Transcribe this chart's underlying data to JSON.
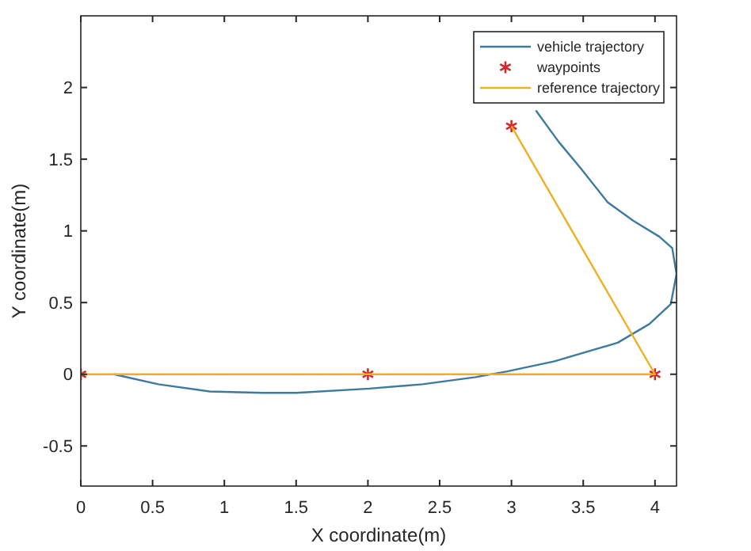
{
  "chart_data": {
    "type": "line",
    "xlabel": "X coordinate(m)",
    "ylabel": "Y coordinate(m)",
    "xlim": [
      0,
      4.15
    ],
    "ylim": [
      -0.78,
      2.5
    ],
    "xticks": [
      0,
      0.5,
      1,
      1.5,
      2,
      2.5,
      3,
      3.5,
      4
    ],
    "yticks": [
      -0.5,
      0,
      0.5,
      1,
      1.5,
      2
    ],
    "grid": false,
    "legend": "top right",
    "series": [
      {
        "name": "vehicle trajectory",
        "color": "#3d7a9e",
        "marker": "none",
        "x": [
          0.23,
          0.54,
          0.9,
          1.27,
          1.5,
          2.01,
          2.38,
          2.75,
          2.97,
          3.3,
          3.74,
          3.96,
          4.11,
          4.15,
          4.12,
          4.03,
          3.85,
          3.67,
          3.48,
          3.33,
          3.17
        ],
        "values": [
          0,
          -0.07,
          -0.12,
          -0.13,
          -0.13,
          -0.1,
          -0.07,
          -0.02,
          0.02,
          0.09,
          0.22,
          0.35,
          0.49,
          0.7,
          0.88,
          0.96,
          1.07,
          1.2,
          1.44,
          1.62,
          1.84
        ]
      },
      {
        "name": "waypoints",
        "type": "scatter",
        "color": "#d62728",
        "marker": "cross",
        "x": [
          0,
          2,
          4,
          3
        ],
        "values": [
          0,
          0,
          0,
          1.73
        ]
      },
      {
        "name": "reference trajectory",
        "color": "#edb120",
        "marker": "none",
        "x": [
          0,
          4,
          3
        ],
        "values": [
          0,
          0,
          1.73
        ]
      }
    ]
  }
}
